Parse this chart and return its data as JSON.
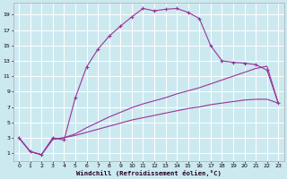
{
  "background_color": "#cde9f0",
  "grid_color": "#ffffff",
  "line_color": "#993399",
  "xlabel": "Windchill (Refroidissement éolien,°C)",
  "xlim": [
    -0.5,
    23.5
  ],
  "ylim": [
    0,
    20.5
  ],
  "xticks": [
    0,
    1,
    2,
    3,
    4,
    5,
    6,
    7,
    8,
    9,
    10,
    11,
    12,
    13,
    14,
    15,
    16,
    17,
    18,
    19,
    20,
    21,
    22,
    23
  ],
  "yticks": [
    1,
    3,
    5,
    7,
    9,
    11,
    13,
    15,
    17,
    19
  ],
  "line1_x": [
    0,
    1,
    2,
    3,
    4,
    5,
    6,
    7,
    8,
    9,
    10,
    11,
    12,
    13,
    14,
    15,
    16,
    17,
    18,
    19,
    20,
    21,
    22,
    23
  ],
  "line1_y": [
    3.0,
    1.2,
    0.8,
    3.0,
    2.7,
    8.2,
    12.2,
    14.5,
    16.2,
    17.5,
    18.7,
    19.8,
    19.5,
    19.7,
    19.8,
    19.3,
    18.5,
    15.0,
    13.0,
    12.8,
    12.7,
    12.5,
    11.8,
    7.5
  ],
  "line2_x": [
    0,
    1,
    2,
    3,
    4,
    5,
    6,
    7,
    8,
    9,
    10,
    11,
    12,
    13,
    14,
    15,
    16,
    17,
    18,
    19,
    20,
    21,
    22,
    23
  ],
  "line2_y": [
    3.0,
    1.2,
    0.8,
    2.8,
    3.0,
    3.5,
    4.3,
    5.0,
    5.7,
    6.3,
    6.9,
    7.4,
    7.8,
    8.2,
    8.7,
    9.1,
    9.5,
    10.0,
    10.5,
    11.0,
    11.5,
    12.0,
    12.3,
    7.5
  ],
  "line3_x": [
    0,
    1,
    2,
    3,
    4,
    5,
    6,
    7,
    8,
    9,
    10,
    11,
    12,
    13,
    14,
    15,
    16,
    17,
    18,
    19,
    20,
    21,
    22,
    23
  ],
  "line3_y": [
    3.0,
    1.2,
    0.8,
    2.8,
    3.0,
    3.3,
    3.7,
    4.1,
    4.5,
    4.9,
    5.3,
    5.6,
    5.9,
    6.2,
    6.5,
    6.8,
    7.0,
    7.3,
    7.5,
    7.7,
    7.9,
    8.0,
    8.0,
    7.5
  ]
}
